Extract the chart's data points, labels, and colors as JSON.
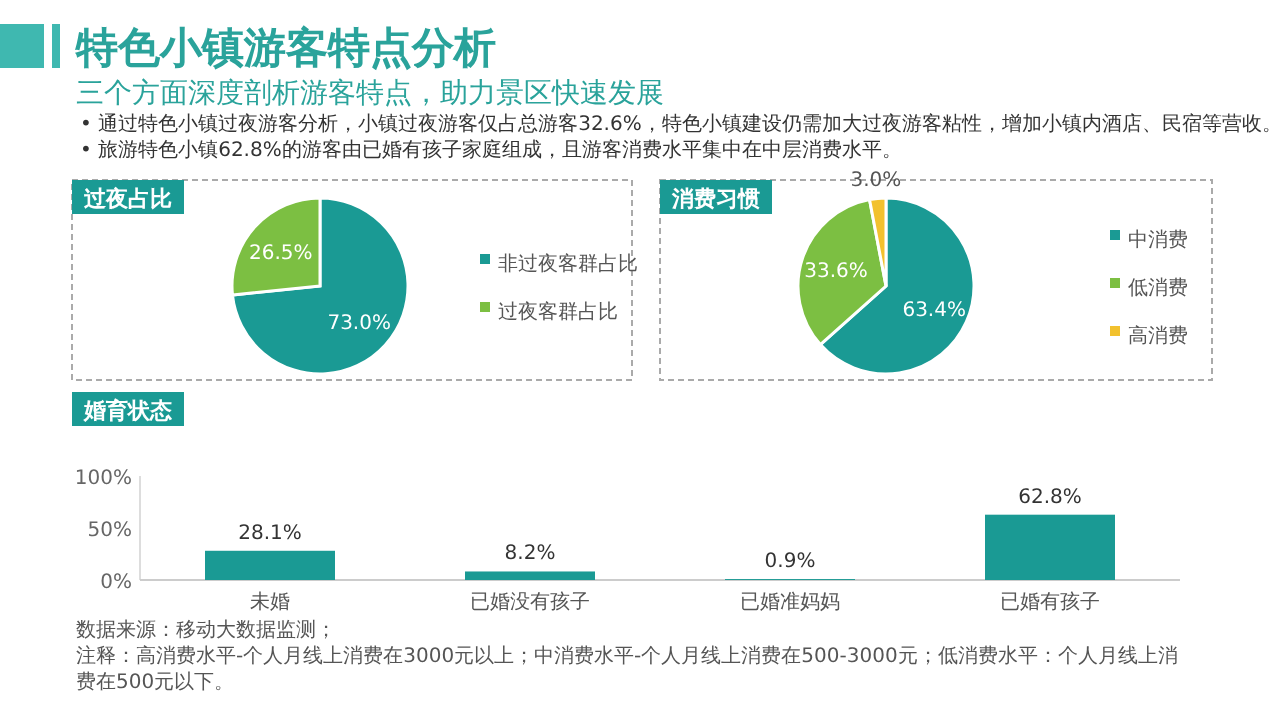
{
  "chart_data": [
    {
      "type": "other",
      "title": "特色小镇游客特点分析",
      "subtitle": "三个方面深度剖析游客特点，助力景区快速发展",
      "annotations": [
        "• 通过特色小镇过夜游客分析，小镇过夜游客仅占总游客32.6%，特色小镇建设仍需加大过夜游客粘性，增加小镇内酒店、民宿等营收。",
        "• 旅游特色小镇62.8%的游客由已婚有孩子家庭组成，且游客消费水平集中在中层消费水平。",
        "数据来源：移动大数据监测；",
        "注释：高消费水平-个人月线上消费在3000元以上；中消费水平-个人月线上消费在500-3000元；低消费水平：个人月线上消费在500元以下。"
      ]
    },
    {
      "type": "pie",
      "title": "过夜占比",
      "categories": [
        "非过夜客群占比",
        "过夜客群占比"
      ],
      "values": [
        73.0,
        26.5
      ],
      "colors": [
        "#1a9a94",
        "#7cbf42"
      ],
      "value_labels": [
        "73.0%",
        "26.5%"
      ],
      "legend": "right"
    },
    {
      "type": "pie",
      "title": "消费习惯",
      "categories": [
        "中消费",
        "低消费",
        "高消费"
      ],
      "values": [
        63.4,
        33.6,
        3.0
      ],
      "colors": [
        "#1a9a94",
        "#7cbf42",
        "#f2c12e"
      ],
      "value_labels": [
        "63.4%",
        "33.6%",
        "3.0%"
      ],
      "legend": "right"
    },
    {
      "type": "bar",
      "title": "婚育状态",
      "categories": [
        "未婚",
        "已婚没有孩子",
        "已婚准妈妈",
        "已婚有孩子"
      ],
      "values": [
        28.1,
        8.2,
        0.9,
        62.8
      ],
      "color": "#1a9a94",
      "value_labels": [
        "28.1%",
        "8.2%",
        "0.9%",
        "62.8%"
      ],
      "ylim": [
        0,
        100
      ],
      "yticks": [
        {
          "value": 0,
          "label": "0%"
        },
        {
          "value": 50,
          "label": "50%"
        },
        {
          "value": 100,
          "label": "100%"
        }
      ],
      "grid": false
    }
  ]
}
